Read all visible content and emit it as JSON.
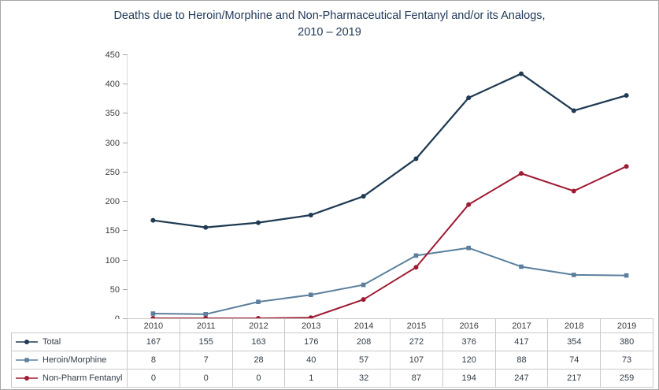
{
  "title": {
    "line1": "Deaths due to Heroin/Morphine  and Non-Pharmaceutical Fentanyl and/or its Analogs,",
    "line2": "2010 – 2019"
  },
  "chart_data": {
    "type": "line",
    "title": "Deaths due to Heroin/Morphine and Non-Pharmaceutical Fentanyl and/or its Analogs, 2010 – 2019",
    "x": [
      "2010",
      "2011",
      "2012",
      "2013",
      "2014",
      "2015",
      "2016",
      "2017",
      "2018",
      "2019"
    ],
    "series": [
      {
        "name": "Total",
        "color": "#1f3a52",
        "marker": "circle",
        "values": [
          167,
          155,
          163,
          176,
          208,
          272,
          376,
          417,
          354,
          380
        ]
      },
      {
        "name": "Heroin/Morphine",
        "color": "#5b7f9d",
        "marker": "square",
        "values": [
          8,
          7,
          28,
          40,
          57,
          107,
          120,
          88,
          74,
          73
        ]
      },
      {
        "name": "Non-Pharm Fentanyl",
        "color": "#9e1b32",
        "marker": "circle",
        "values": [
          0,
          0,
          0,
          1,
          32,
          87,
          194,
          247,
          217,
          259
        ]
      }
    ],
    "ylim": [
      0,
      450
    ],
    "ytick_step": 50,
    "yticks": [
      0,
      50,
      100,
      150,
      200,
      250,
      300,
      350,
      400,
      450
    ],
    "grid": false,
    "legend_position": "data-table-left-column",
    "data_table_shown": true
  }
}
